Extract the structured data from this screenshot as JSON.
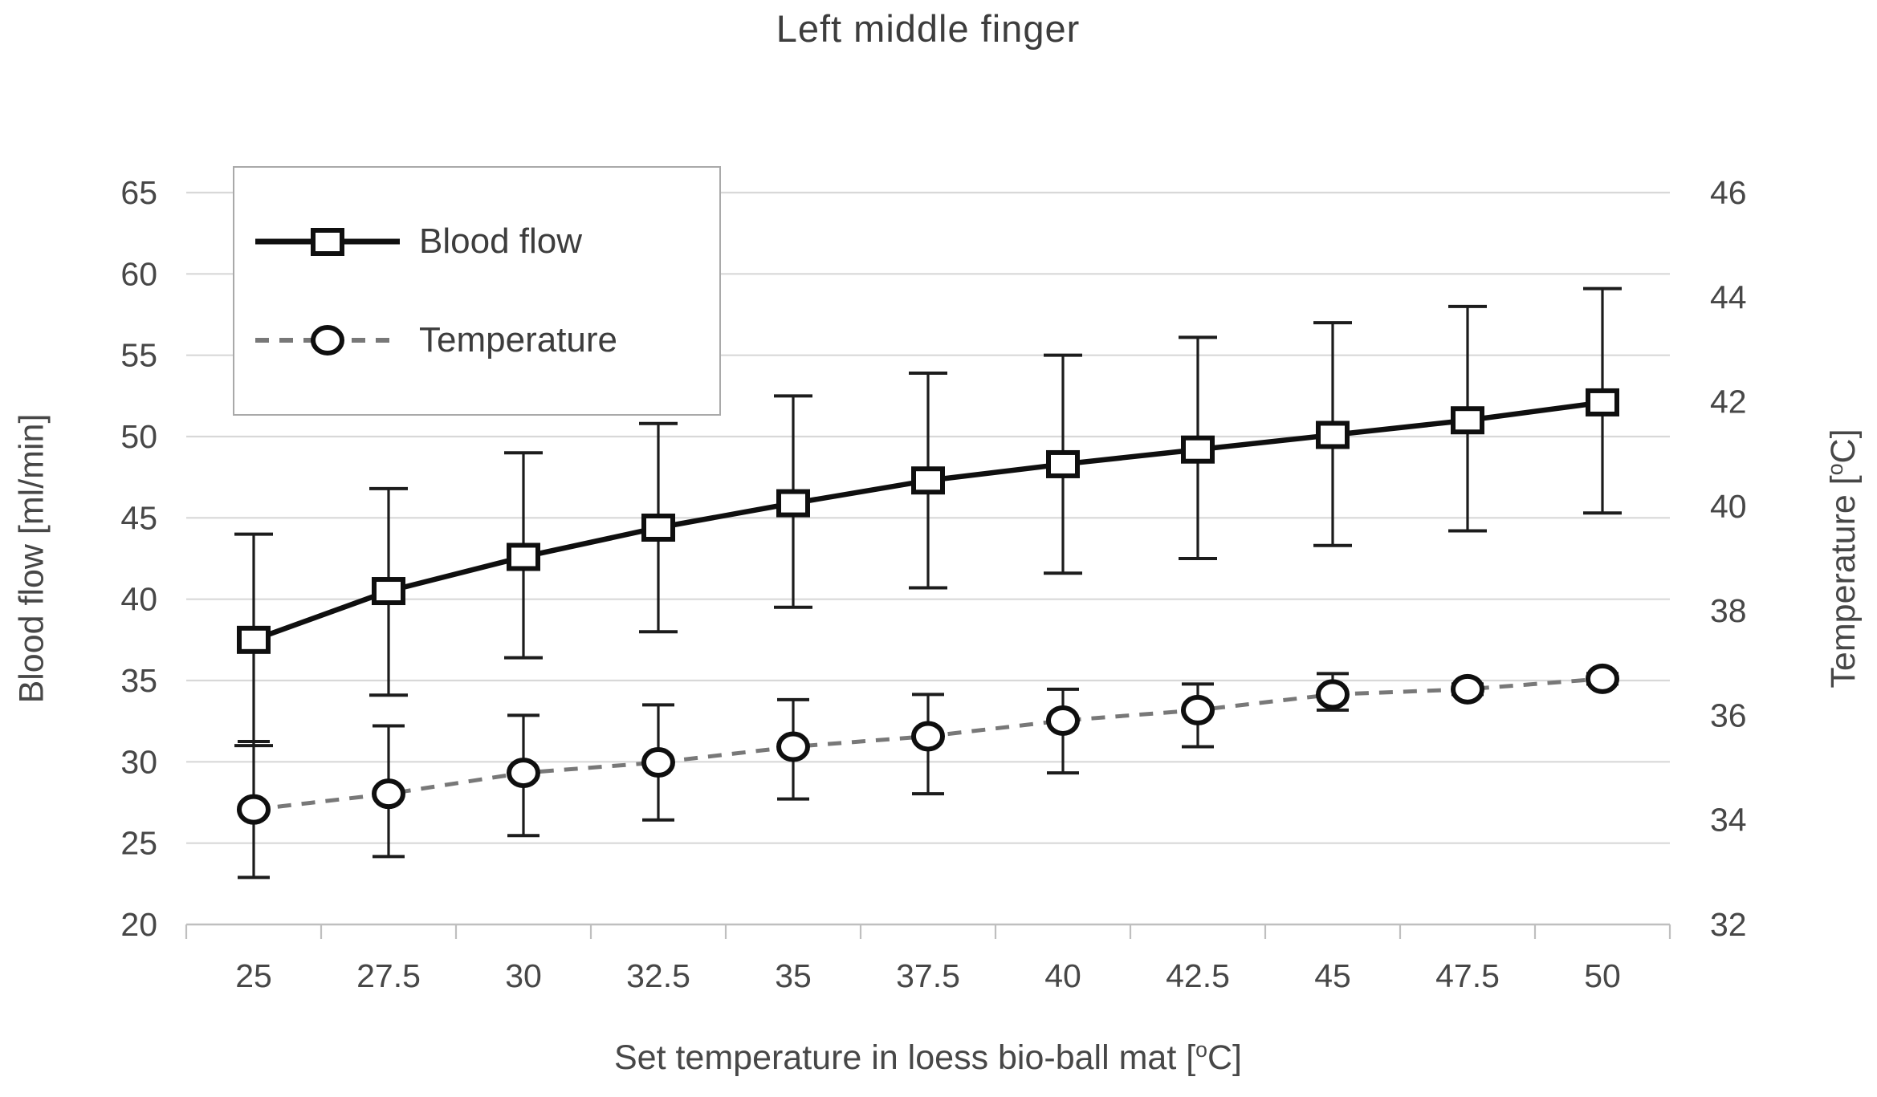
{
  "chart_data": {
    "type": "line",
    "title": "Left middle finger",
    "categories": [
      "25",
      "27.5",
      "30",
      "32.5",
      "35",
      "37.5",
      "40",
      "42.5",
      "45",
      "47.5",
      "50"
    ],
    "x_axis": {
      "title_pre": "Set temperature in loess bio-ball mat [",
      "title_sup": "o",
      "title_post": "C]"
    },
    "left_axis": {
      "title": "Blood flow [ml/min]",
      "ticks": [
        "65",
        "60",
        "55",
        "50",
        "45",
        "40",
        "35",
        "30",
        "25",
        "20"
      ],
      "range": [
        20,
        65
      ],
      "gridline_values": [
        25,
        30,
        35,
        40,
        45,
        50,
        55,
        60,
        65
      ]
    },
    "right_axis": {
      "title_pre": "Temperature [",
      "title_sup": "o",
      "title_post": "C]",
      "ticks": [
        "46",
        "44",
        "42",
        "40",
        "38",
        "36",
        "34",
        "32"
      ],
      "range": [
        32,
        46
      ]
    },
    "legend_position": "top-left",
    "grid": true,
    "series": [
      {
        "name": "Blood flow",
        "axis": "left",
        "line_style": "solid",
        "marker": "square",
        "color": "#0f0f0f",
        "values": [
          37.5,
          40.5,
          42.6,
          44.4,
          45.9,
          47.3,
          48.3,
          49.2,
          50.1,
          51.0,
          52.1
        ],
        "err_low": [
          31.0,
          34.1,
          36.4,
          38.0,
          39.5,
          40.7,
          41.6,
          42.5,
          43.3,
          44.2,
          45.3
        ],
        "err_high": [
          44.0,
          46.8,
          49.0,
          50.8,
          52.5,
          53.9,
          55.0,
          56.1,
          57.0,
          58.0,
          59.1
        ]
      },
      {
        "name": "Temperature",
        "axis": "right",
        "line_style": "dashed",
        "marker": "circle",
        "color": "#787878",
        "values": [
          34.2,
          34.5,
          34.9,
          35.1,
          35.4,
          35.6,
          35.9,
          36.1,
          36.4,
          36.5,
          36.7
        ],
        "err_low": [
          32.9,
          33.3,
          33.7,
          34.0,
          34.4,
          34.5,
          34.9,
          35.4,
          36.1,
          36.4,
          36.6
        ],
        "err_high": [
          35.5,
          35.8,
          36.0,
          36.2,
          36.3,
          36.4,
          36.5,
          36.6,
          36.8,
          36.6,
          36.8
        ]
      }
    ],
    "colors": {
      "grid": "#d8d8d8",
      "axis_line": "#bfbfbf",
      "error_bar": "#1c1c1c",
      "tick_text": "#474747",
      "title_text": "#3d3d3d"
    }
  }
}
